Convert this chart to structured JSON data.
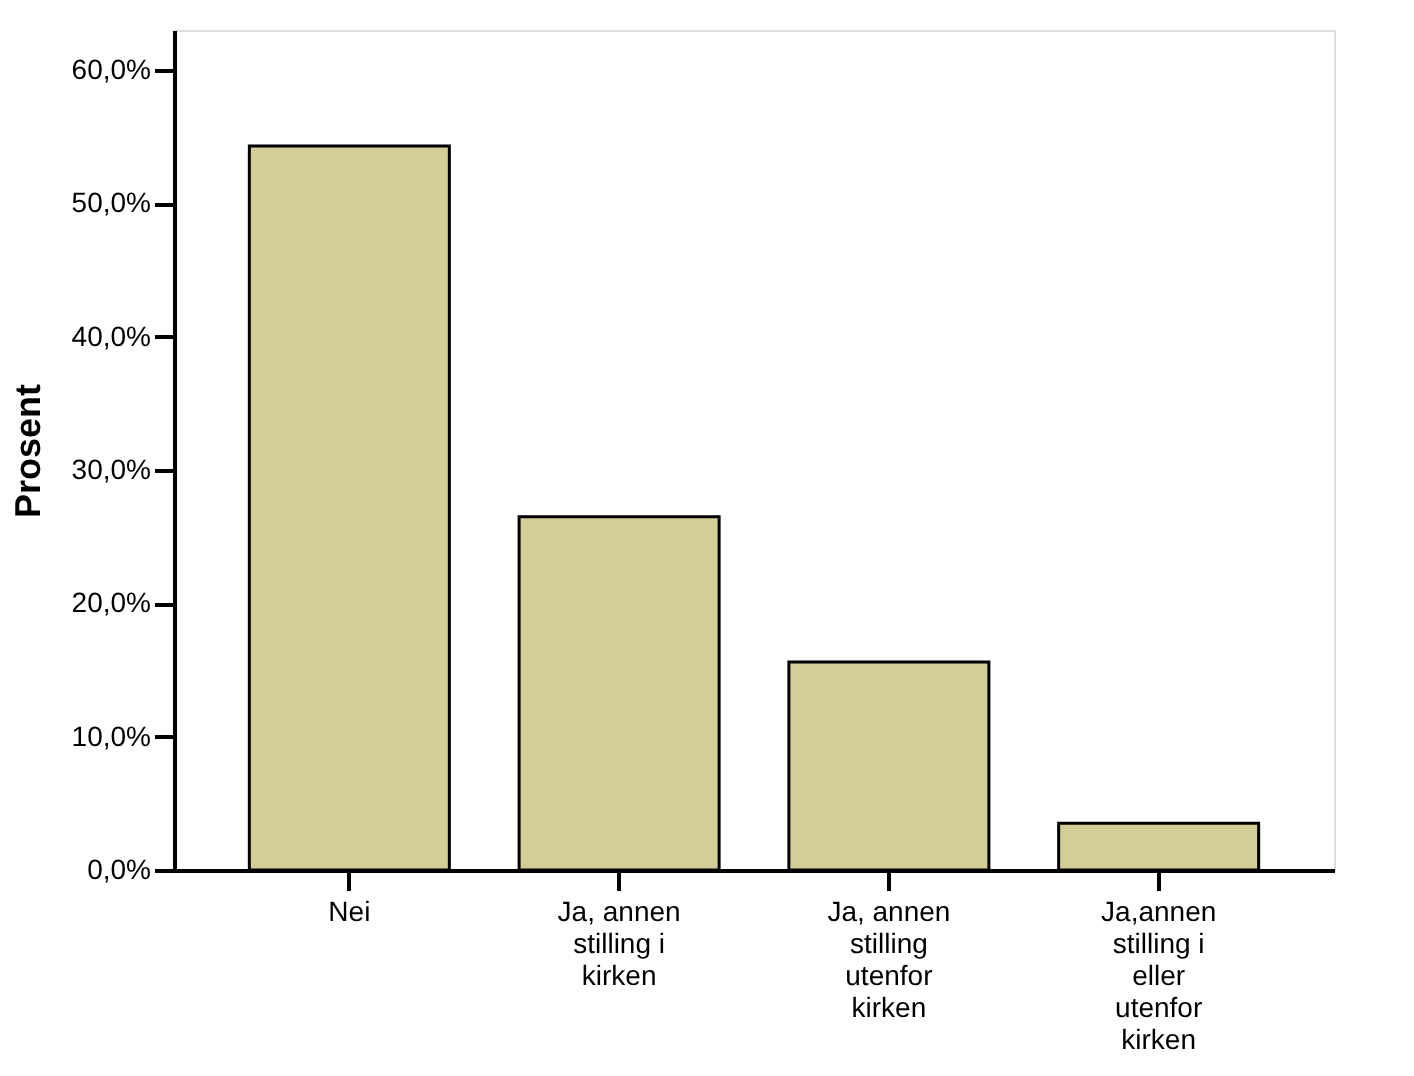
{
  "chart_data": {
    "type": "bar",
    "ylabel": "Prosent",
    "categories": [
      "Nei",
      "Ja, annen stilling i kirken",
      "Ja, annen stilling utenfor kirken",
      "Ja,annen stilling i eller utenfor kirken"
    ],
    "values": [
      54.3,
      26.5,
      15.6,
      3.5
    ],
    "color": "#d3ce97",
    "ylim": [
      0,
      63
    ],
    "yticks": [
      {
        "value": 0,
        "label": "0,0%"
      },
      {
        "value": 10,
        "label": "10,0%"
      },
      {
        "value": 20,
        "label": "20,0%"
      },
      {
        "value": 30,
        "label": "30,0%"
      },
      {
        "value": 40,
        "label": "40,0%"
      },
      {
        "value": 50,
        "label": "50,0%"
      },
      {
        "value": 60,
        "label": "60,0%"
      }
    ],
    "grid": false
  }
}
